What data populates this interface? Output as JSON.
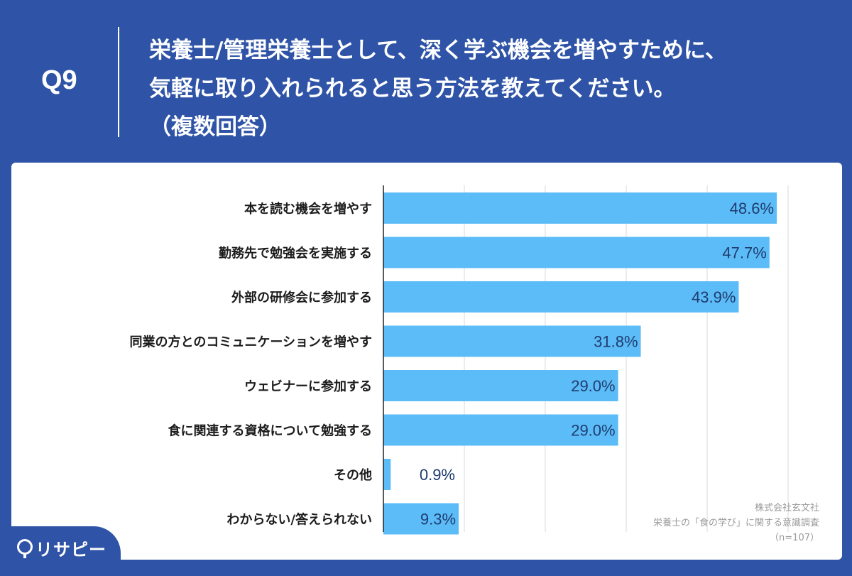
{
  "header": {
    "q_number": "Q9",
    "question_line1": "栄養士/管理栄養士として、深く学ぶ機会を増やすために、",
    "question_line2": "気軽に取り入れられると思う方法を教えてください。",
    "question_line3": "（複数回答）"
  },
  "source": {
    "company": "株式会社玄文社",
    "survey": "栄養士の「食の学び」に関する意識調査",
    "n": "（n=107）"
  },
  "logo": {
    "text": "リサピー",
    "icon": "pin-icon"
  },
  "colors": {
    "background": "#2f54a7",
    "bar": "#5bbcf8",
    "value_label": "#1f3c6e"
  },
  "chart_data": {
    "type": "bar",
    "orientation": "horizontal",
    "categories": [
      "本を読む機会を増やす",
      "勤務先で勉強会を実施する",
      "外部の研修会に参加する",
      "同業の方とのコミュニケーションを増やす",
      "ウェビナーに参加する",
      "食に関連する資格について勉強する",
      "その他",
      "わからない/答えられない"
    ],
    "values": [
      48.6,
      47.7,
      43.9,
      31.8,
      29.0,
      29.0,
      0.9,
      9.3
    ],
    "value_labels": [
      "48.6%",
      "47.7%",
      "43.9%",
      "31.8%",
      "29.0%",
      "29.0%",
      "0.9%",
      "9.3%"
    ],
    "xlim": [
      0,
      50
    ],
    "grid": true
  }
}
